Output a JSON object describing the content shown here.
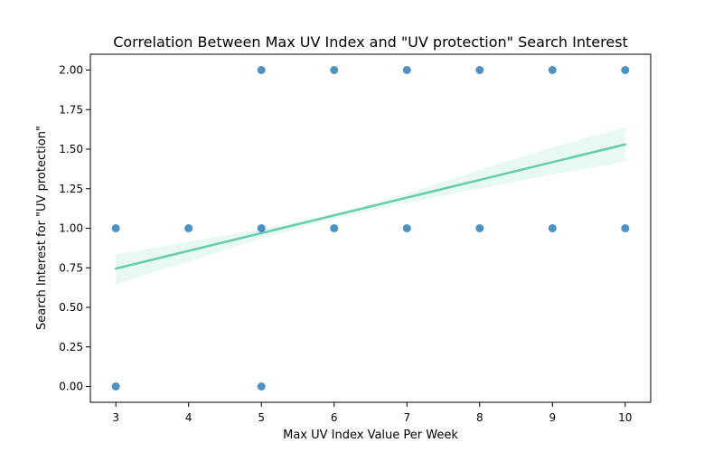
{
  "chart_data": {
    "type": "scatter",
    "title": "Correlation Between Max UV Index and \"UV protection\" Search Interest",
    "xlabel": "Max UV Index Value Per Week",
    "ylabel": "Search Interest for \"UV protection\"",
    "xlim": [
      2.65,
      10.35
    ],
    "ylim": [
      -0.1,
      2.1
    ],
    "xticks": [
      3,
      4,
      5,
      6,
      7,
      8,
      9,
      10
    ],
    "yticks": [
      0.0,
      0.25,
      0.5,
      0.75,
      1.0,
      1.25,
      1.5,
      1.75,
      2.0
    ],
    "xtick_labels": [
      "3",
      "4",
      "5",
      "6",
      "7",
      "8",
      "9",
      "10"
    ],
    "ytick_labels": [
      "0.00",
      "0.25",
      "0.50",
      "0.75",
      "1.00",
      "1.25",
      "1.50",
      "1.75",
      "2.00"
    ],
    "grid": false,
    "point_color": "#1f77b4",
    "points": [
      {
        "x": 3,
        "y": 0
      },
      {
        "x": 3,
        "y": 1
      },
      {
        "x": 4,
        "y": 1
      },
      {
        "x": 5,
        "y": 0
      },
      {
        "x": 5,
        "y": 1
      },
      {
        "x": 5,
        "y": 2
      },
      {
        "x": 6,
        "y": 1
      },
      {
        "x": 6,
        "y": 2
      },
      {
        "x": 7,
        "y": 1
      },
      {
        "x": 7,
        "y": 2
      },
      {
        "x": 8,
        "y": 1
      },
      {
        "x": 8,
        "y": 2
      },
      {
        "x": 9,
        "y": 1
      },
      {
        "x": 9,
        "y": 2
      },
      {
        "x": 10,
        "y": 1
      },
      {
        "x": 10,
        "y": 2
      }
    ],
    "regression": {
      "color": "#66cdaa",
      "line": [
        {
          "x": 3,
          "y": 0.745
        },
        {
          "x": 10,
          "y": 1.53
        }
      ],
      "ci_upper": [
        {
          "x": 3,
          "y": 0.835
        },
        {
          "x": 5,
          "y": 0.995
        },
        {
          "x": 6,
          "y": 1.09
        },
        {
          "x": 7,
          "y": 1.22
        },
        {
          "x": 8,
          "y": 1.37
        },
        {
          "x": 9,
          "y": 1.51
        },
        {
          "x": 10,
          "y": 1.64
        }
      ],
      "ci_lower": [
        {
          "x": 3,
          "y": 0.645
        },
        {
          "x": 5,
          "y": 0.935
        },
        {
          "x": 6,
          "y": 1.06
        },
        {
          "x": 7,
          "y": 1.16
        },
        {
          "x": 8,
          "y": 1.25
        },
        {
          "x": 9,
          "y": 1.34
        },
        {
          "x": 10,
          "y": 1.42
        }
      ]
    }
  }
}
